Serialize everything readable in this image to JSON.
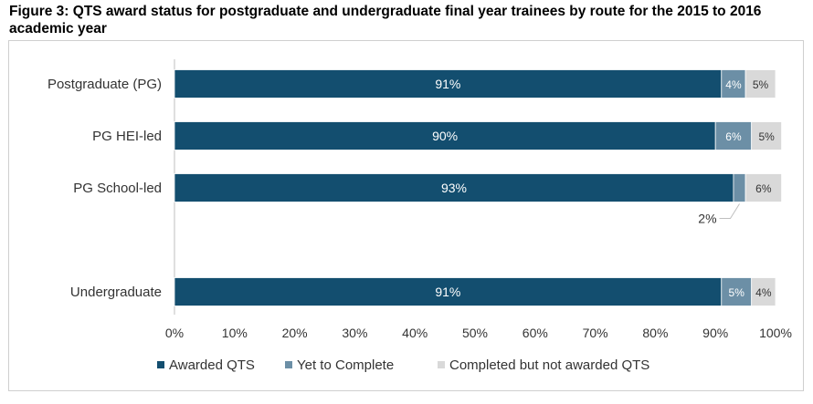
{
  "title": "Figure 3: QTS award status for postgraduate and undergraduate final year trainees by route for the 2015 to 2016 academic year",
  "chart_data": {
    "type": "bar",
    "orientation": "horizontal",
    "stacked": true,
    "categories": [
      "Postgraduate (PG)",
      "PG HEI-led",
      "PG School-led",
      "Undergraduate"
    ],
    "series": [
      {
        "name": "Awarded QTS",
        "values": [
          91,
          90,
          93,
          91
        ],
        "labels": [
          "91%",
          "90%",
          "93%",
          "91%"
        ],
        "color": "#134e6f",
        "label_color": "#ffffff"
      },
      {
        "name": "Yet to Complete",
        "values": [
          4,
          6,
          2,
          5
        ],
        "labels": [
          "4%",
          "6%",
          "2%",
          "5%"
        ],
        "color": "#6c8fa6",
        "label_color": "#ffffff"
      },
      {
        "name": "Completed but not awarded QTS",
        "values": [
          5,
          5,
          6,
          4
        ],
        "labels": [
          "5%",
          "5%",
          "6%",
          "4%"
        ],
        "color": "#d9d9d9",
        "label_color": "#333333"
      }
    ],
    "x_ticks": [
      "0%",
      "10%",
      "20%",
      "30%",
      "40%",
      "50%",
      "60%",
      "70%",
      "80%",
      "90%",
      "100%"
    ],
    "xlim": [
      0,
      100
    ],
    "grid": false,
    "legend": "bottom",
    "callout": {
      "text": "2%",
      "category_index": 2,
      "series_index": 1
    }
  }
}
